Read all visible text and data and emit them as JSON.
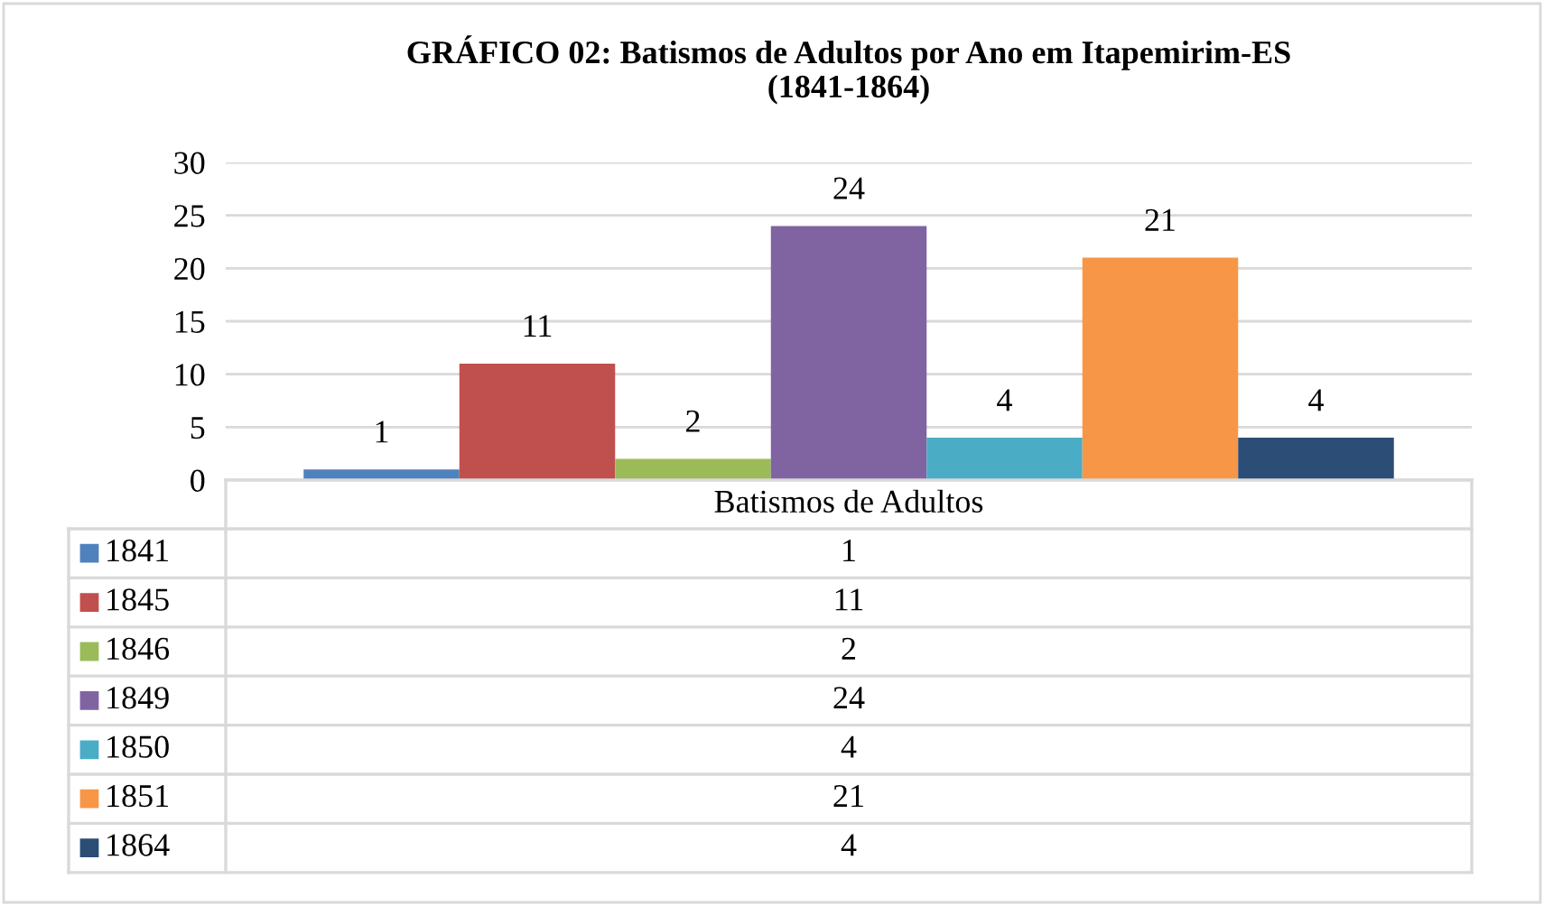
{
  "chart_data": {
    "type": "bar",
    "title": "GRÁFICO 02: Batismos de Adultos por Ano em Itapemirim-ES\n(1841-1864)",
    "categories": [
      "Batismos de Adultos"
    ],
    "series": [
      {
        "name": "1841",
        "color": "#4f81bd",
        "values": [
          1
        ]
      },
      {
        "name": "1845",
        "color": "#c0504d",
        "values": [
          11
        ]
      },
      {
        "name": "1846",
        "color": "#9bbb59",
        "values": [
          2
        ]
      },
      {
        "name": "1849",
        "color": "#8064a2",
        "values": [
          24
        ]
      },
      {
        "name": "1850",
        "color": "#4bacc6",
        "values": [
          4
        ]
      },
      {
        "name": "1851",
        "color": "#f79646",
        "values": [
          21
        ]
      },
      {
        "name": "1864",
        "color": "#2c4d75",
        "values": [
          4
        ]
      }
    ],
    "ylim": [
      0,
      30
    ],
    "yticks": [
      0,
      5,
      10,
      15,
      20,
      25,
      30
    ],
    "annotations": [
      "1",
      "11",
      "2",
      "24",
      "4",
      "21",
      "4"
    ],
    "grid": "y",
    "data_labels": true,
    "legend": "bottom"
  }
}
